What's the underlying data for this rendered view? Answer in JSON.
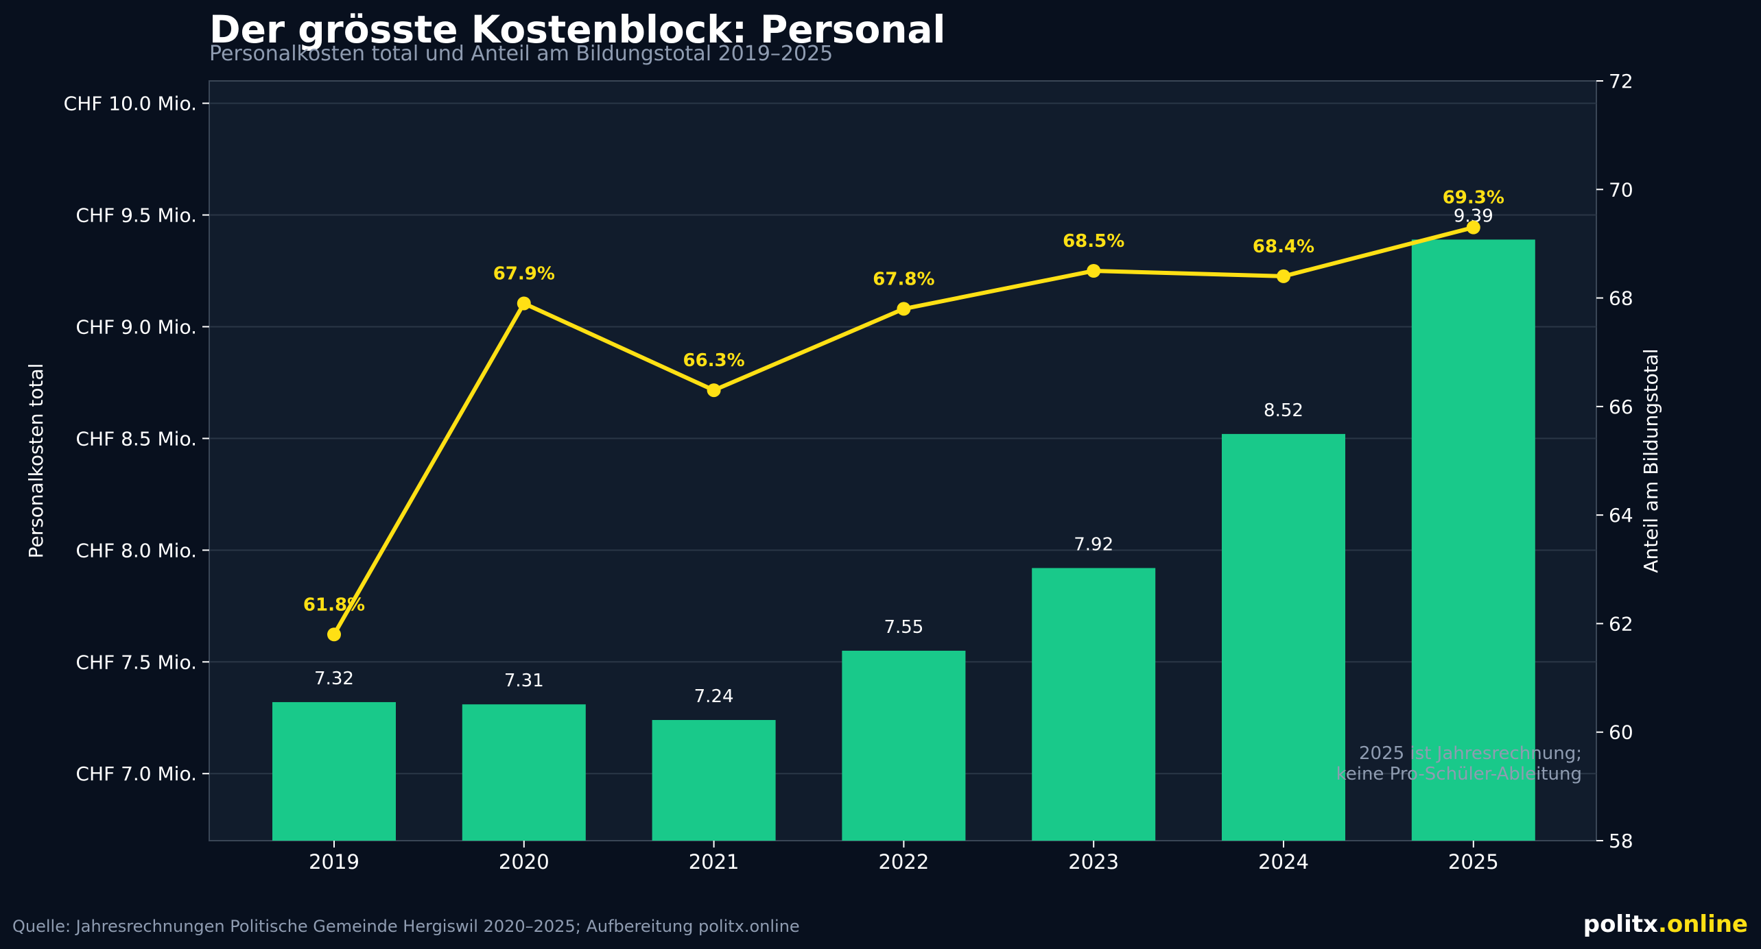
{
  "header": {
    "title": "Der grösste Kostenblock: Personal",
    "subtitle": "Personalkosten total und Anteil am Bildungstotal 2019–2025"
  },
  "footer": {
    "source": "Quelle: Jahresrechnungen Politische Gemeinde Hergiswil 2020–2025; Aufbereitung politx.online",
    "brand_part1": "politx",
    "brand_part2": ".online"
  },
  "colors": {
    "background": "#08101e",
    "plot_background": "#111c2c",
    "bar": "#19c98a",
    "line": "#ffe014",
    "text": "#ffffff",
    "muted": "#8f9cb1"
  },
  "chart_data": {
    "type": "bar",
    "categories": [
      "2019",
      "2020",
      "2021",
      "2022",
      "2023",
      "2024",
      "2025"
    ],
    "series": [
      {
        "type": "bar",
        "axis": "left",
        "values": [
          7.32,
          7.31,
          7.24,
          7.55,
          7.92,
          8.52,
          9.39
        ],
        "labels": [
          "7.32",
          "7.31",
          "7.24",
          "7.55",
          "7.92",
          "8.52",
          "9.39"
        ]
      },
      {
        "type": "line",
        "axis": "right",
        "values": [
          61.8,
          67.9,
          66.3,
          67.8,
          68.5,
          68.4,
          69.3
        ],
        "labels": [
          "61.8%",
          "67.9%",
          "66.3%",
          "67.8%",
          "68.5%",
          "68.4%",
          "69.3%"
        ]
      }
    ],
    "ylabel": "Personalkosten total",
    "ylabel_right": "Anteil am Bildungstotal",
    "ylim": [
      6.7,
      10.1
    ],
    "ylim_right": [
      58,
      72
    ],
    "yticks": [
      7.0,
      7.5,
      8.0,
      8.5,
      9.0,
      9.5,
      10.0
    ],
    "ytick_labels": [
      "CHF 7.0 Mio.",
      "CHF 7.5 Mio.",
      "CHF 8.0 Mio.",
      "CHF 8.5 Mio.",
      "CHF 9.0 Mio.",
      "CHF 9.5 Mio.",
      "CHF 10.0 Mio."
    ],
    "yticks_right": [
      58,
      60,
      62,
      64,
      66,
      68,
      70,
      72
    ],
    "ytick_labels_right": [
      "58",
      "60",
      "62",
      "64",
      "66",
      "68",
      "70",
      "72"
    ],
    "grid": true,
    "annotation": [
      "2025 ist Jahresrechnung;",
      "keine Pro-Schüler-Ableitung"
    ]
  }
}
